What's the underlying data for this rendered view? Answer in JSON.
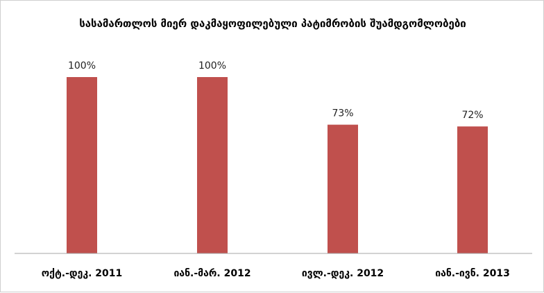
{
  "chart_data": {
    "type": "bar",
    "title": "სასამართლოს მიერ დაკმაყოფილებული პატიმრობის შუამდგომლობები",
    "categories": [
      "ოქტ.-დეკ. 2011",
      "იან.-მარ. 2012",
      "ივლ.-დეკ. 2012",
      "იან.-ივნ. 2013"
    ],
    "values": [
      100,
      100,
      73,
      72
    ],
    "data_labels": [
      "100%",
      "100%",
      "73%",
      "72%"
    ],
    "unit": "%",
    "ylim": [
      0,
      100
    ],
    "bar_color": "#c0504d",
    "grid": false,
    "legend": "none",
    "xlabel": "",
    "ylabel": ""
  }
}
